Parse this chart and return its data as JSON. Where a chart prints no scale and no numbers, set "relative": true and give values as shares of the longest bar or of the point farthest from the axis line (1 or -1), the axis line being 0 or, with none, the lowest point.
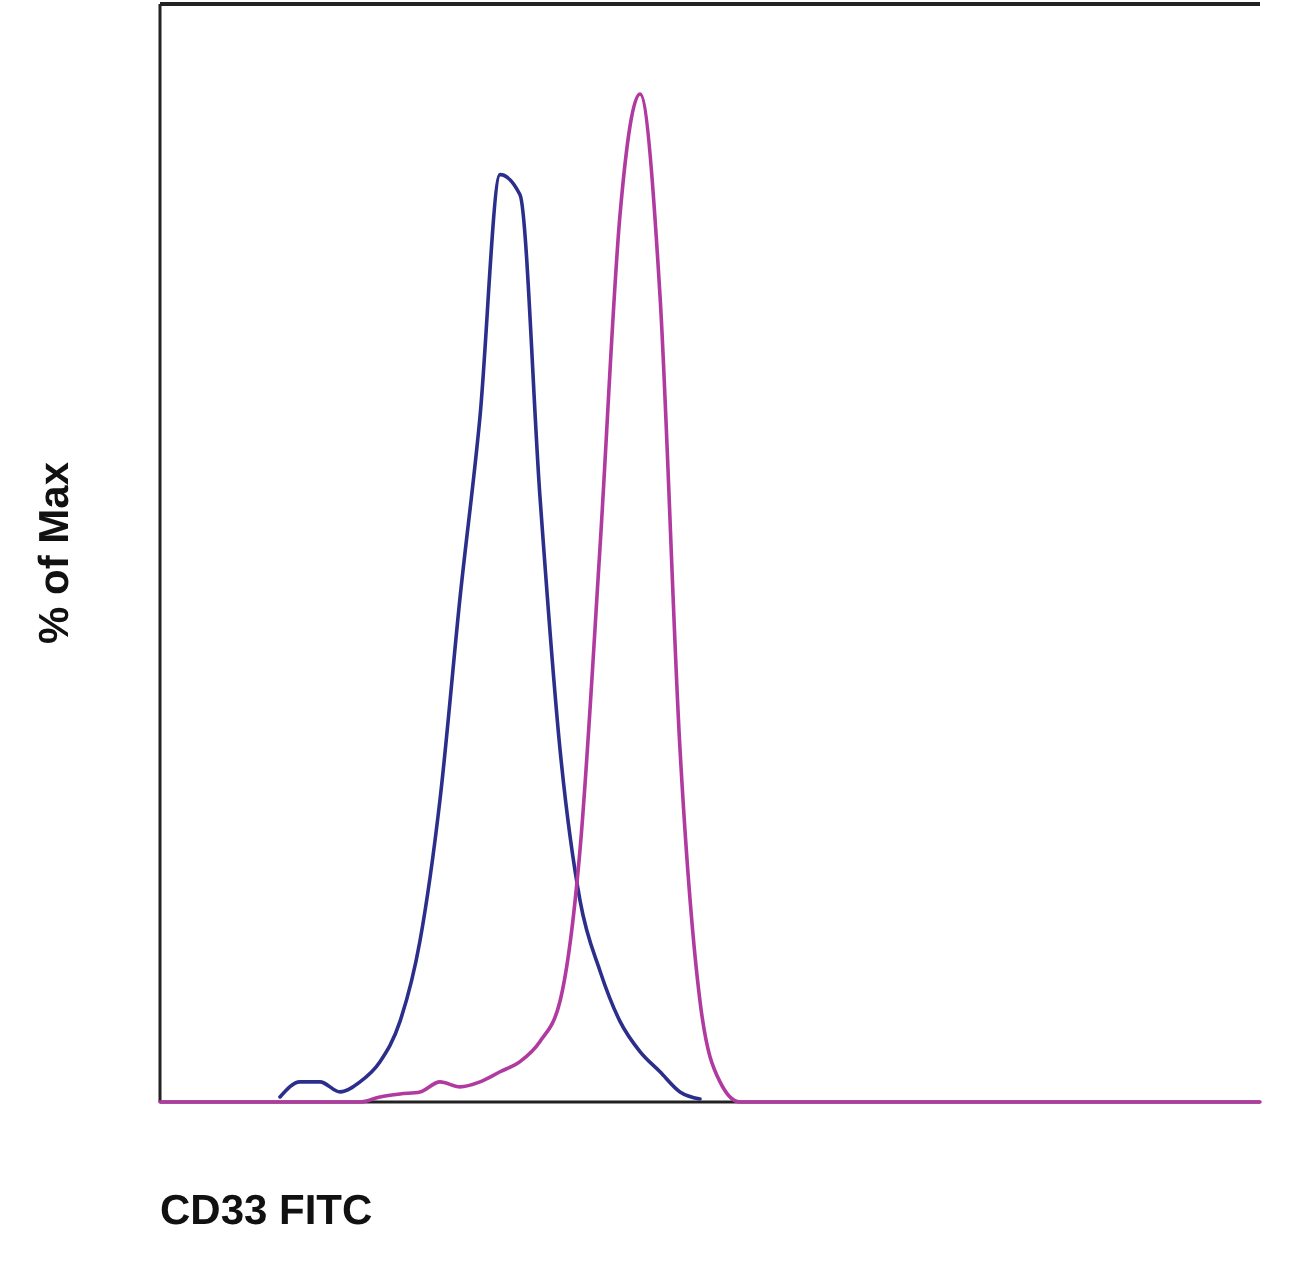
{
  "chart_data": {
    "type": "line",
    "relative": true,
    "xlabel": "CD33 FITC",
    "ylabel": "% of Max",
    "categories": [
      null,
      null,
      null,
      null,
      null,
      null,
      null,
      null,
      null,
      null,
      null,
      null,
      null,
      null,
      null,
      null,
      null,
      null,
      null,
      null,
      null,
      null,
      null,
      null,
      null,
      null,
      null,
      null,
      null,
      null,
      null,
      null,
      null,
      null,
      null,
      null,
      null,
      null,
      null,
      null,
      null,
      null,
      null,
      null,
      null,
      null,
      null,
      null,
      null,
      null,
      null,
      null,
      null,
      null,
      null,
      null
    ],
    "series": [
      {
        "color": "#2c2e8c",
        "values": [
          null,
          null,
          null,
          null,
          null,
          null,
          0.005,
          0.02,
          0.02,
          0.01,
          0.02,
          0.04,
          0.08,
          0.16,
          0.3,
          0.5,
          0.68,
          0.92,
          0.9,
          0.6,
          0.35,
          0.2,
          0.13,
          0.08,
          0.05,
          0.03,
          0.01,
          0.003,
          null,
          null,
          null,
          null,
          null,
          null,
          null,
          null,
          null,
          null,
          null,
          null,
          null,
          null,
          null,
          null,
          null,
          null,
          null,
          null,
          null,
          null,
          null,
          null,
          null,
          null,
          null,
          null
        ]
      },
      {
        "color": "#b03aa0",
        "values": [
          0,
          0,
          0,
          0,
          0,
          0,
          0,
          0,
          0,
          0,
          0,
          0.005,
          0.008,
          0.01,
          0.02,
          0.015,
          0.02,
          0.03,
          0.04,
          0.06,
          0.1,
          0.25,
          0.55,
          0.88,
          1,
          0.8,
          0.35,
          0.1,
          0.02,
          0,
          0,
          0,
          0,
          0,
          0,
          0,
          0,
          0,
          0,
          0,
          0,
          0,
          0,
          0,
          0,
          0,
          0,
          0,
          0,
          0,
          0,
          0,
          0,
          0,
          0,
          0
        ]
      }
    ]
  }
}
